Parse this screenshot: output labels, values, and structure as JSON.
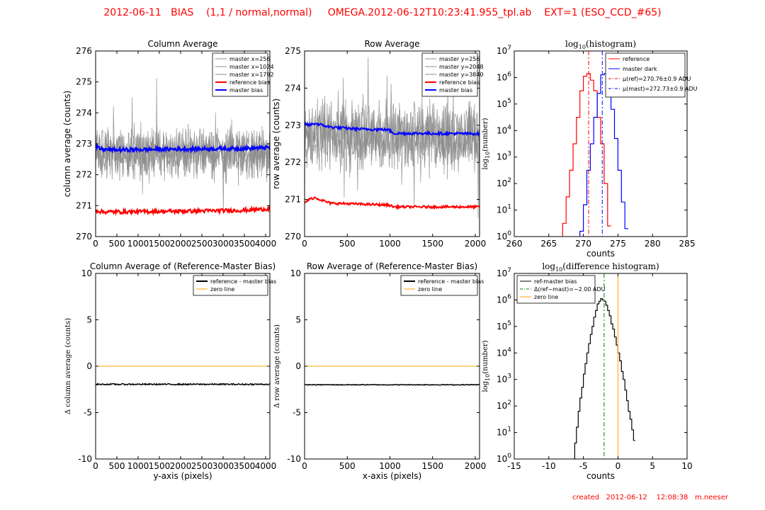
{
  "header": {
    "title": "2012-06-11   BIAS    (1,1 / normal,normal)     OMEGA.2012-06-12T10:23:41.955_tpl.ab    EXT=1 (ESO_CCD_#65)"
  },
  "footer": {
    "created": "created   2012-06-12    12:08:38   m.neeser"
  },
  "colors": {
    "header_text": "#ff0000",
    "master_lines": "#8c8c8c",
    "reference": "#ff0000",
    "master": "#0000ff",
    "difference": "#000000",
    "zero_line": "#ffa500",
    "mean_line": "#008000"
  },
  "chart_data": [
    {
      "id": "col_avg",
      "type": "line",
      "title": "Column Average",
      "xlabel": "",
      "ylabel": "column average (counts)",
      "xlim": [
        0,
        4100
      ],
      "ylim": [
        270,
        276
      ],
      "xticks": [
        0,
        500,
        1000,
        1500,
        2000,
        2500,
        3000,
        3500,
        4000
      ],
      "yticks": [
        270,
        271,
        272,
        273,
        274,
        275,
        276
      ],
      "legend": {
        "position": "top-right"
      },
      "series": [
        {
          "name": "master x=256",
          "color": "#8c8c8c",
          "kind": "noise",
          "x_range": [
            0,
            4100
          ],
          "mean": 272.7,
          "spread": 0.75,
          "count": 420,
          "width": 0.8
        },
        {
          "name": "master x=1024",
          "color": "#8c8c8c",
          "kind": "noise",
          "x_range": [
            0,
            4100
          ],
          "mean": 272.65,
          "spread": 0.7,
          "count": 420,
          "width": 0.8
        },
        {
          "name": "master x=1792",
          "color": "#8c8c8c",
          "kind": "noise",
          "x_range": [
            0,
            4100
          ],
          "mean": 272.75,
          "spread": 0.7,
          "count": 420,
          "width": 0.8
        },
        {
          "name": "reference bias",
          "color": "#ff0000",
          "kind": "band",
          "x_range": [
            0,
            4100
          ],
          "points": [
            [
              0,
              270.85
            ],
            [
              150,
              270.8
            ],
            [
              500,
              270.8
            ],
            [
              2000,
              270.82
            ],
            [
              3500,
              270.85
            ],
            [
              4100,
              270.9
            ]
          ],
          "spread": 0.06,
          "width": 2.2
        },
        {
          "name": "master bias",
          "color": "#0000ff",
          "kind": "band",
          "x_range": [
            0,
            4100
          ],
          "points": [
            [
              0,
              272.9
            ],
            [
              150,
              272.82
            ],
            [
              500,
              272.8
            ],
            [
              2000,
              272.83
            ],
            [
              3500,
              272.85
            ],
            [
              4100,
              272.88
            ]
          ],
          "spread": 0.06,
          "width": 2.2
        }
      ]
    },
    {
      "id": "row_avg",
      "type": "line",
      "title": "Row Average",
      "xlabel": "",
      "ylabel": "row average (counts)",
      "xlim": [
        0,
        2050
      ],
      "ylim": [
        270,
        275
      ],
      "xticks": [
        0,
        500,
        1000,
        1500,
        2000
      ],
      "yticks": [
        270,
        271,
        272,
        273,
        274,
        275
      ],
      "legend": {
        "position": "top-right"
      },
      "series": [
        {
          "name": "master y=256",
          "color": "#8c8c8c",
          "kind": "noise",
          "x_range": [
            0,
            2050
          ],
          "mean": 272.7,
          "spread": 0.85,
          "count": 380,
          "width": 0.8
        },
        {
          "name": "master y=2048",
          "color": "#8c8c8c",
          "kind": "noise",
          "x_range": [
            0,
            2050
          ],
          "mean": 272.8,
          "spread": 0.8,
          "count": 380,
          "width": 0.8
        },
        {
          "name": "master y=3840",
          "color": "#8c8c8c",
          "kind": "noise",
          "x_range": [
            0,
            2050
          ],
          "mean": 272.65,
          "spread": 0.8,
          "count": 380,
          "width": 0.8
        },
        {
          "name": "reference bias",
          "color": "#ff0000",
          "kind": "band",
          "x_range": [
            0,
            2050
          ],
          "points": [
            [
              0,
              270.9
            ],
            [
              50,
              271.0
            ],
            [
              120,
              271.05
            ],
            [
              300,
              270.9
            ],
            [
              600,
              270.88
            ],
            [
              980,
              270.85
            ],
            [
              1050,
              270.8
            ],
            [
              1500,
              270.8
            ],
            [
              2050,
              270.8
            ]
          ],
          "spread": 0.03,
          "width": 2.0
        },
        {
          "name": "master bias",
          "color": "#0000ff",
          "kind": "band",
          "x_range": [
            0,
            2050
          ],
          "points": [
            [
              0,
              273.05
            ],
            [
              50,
              273.0
            ],
            [
              120,
              273.05
            ],
            [
              300,
              272.95
            ],
            [
              600,
              272.9
            ],
            [
              980,
              272.88
            ],
            [
              1050,
              272.78
            ],
            [
              1500,
              272.78
            ],
            [
              2050,
              272.77
            ]
          ],
          "spread": 0.035,
          "width": 2.0
        }
      ]
    },
    {
      "id": "log_hist",
      "type": "line",
      "title": "log10(histogram)",
      "xlabel": "counts",
      "ylabel": "log10(number)",
      "xlim": [
        260,
        285
      ],
      "ylog": true,
      "ylim_exp": [
        0,
        7
      ],
      "xticks": [
        260,
        265,
        270,
        275,
        280,
        285
      ],
      "yticks_exp": [
        0,
        1,
        2,
        3,
        4,
        5,
        6,
        7
      ],
      "legend": {
        "position": "top-right"
      },
      "series": [
        {
          "name": "reference",
          "color": "#ff0000",
          "kind": "hist",
          "bin_width": 0.5,
          "bins": [
            [
              267.25,
              0.5
            ],
            [
              267.75,
              1.5
            ],
            [
              268.25,
              2.5
            ],
            [
              268.75,
              3.5
            ],
            [
              269.25,
              4.5
            ],
            [
              269.75,
              5.5
            ],
            [
              270.25,
              6.05
            ],
            [
              270.75,
              6.15
            ],
            [
              271.25,
              5.9
            ],
            [
              271.75,
              5.5
            ],
            [
              272.25,
              4.5
            ],
            [
              272.75,
              3.5
            ],
            [
              273.25,
              2.0
            ],
            [
              273.75,
              0.4
            ]
          ]
        },
        {
          "name": "master dark",
          "color": "#0000ff",
          "kind": "hist",
          "bin_width": 0.5,
          "bins": [
            [
              269.75,
              0.2
            ],
            [
              270.25,
              1.2
            ],
            [
              270.75,
              2.5
            ],
            [
              271.25,
              3.5
            ],
            [
              271.75,
              4.5
            ],
            [
              272.25,
              5.4
            ],
            [
              272.75,
              6.1
            ],
            [
              273.25,
              6.15
            ],
            [
              273.75,
              5.6
            ],
            [
              274.25,
              4.8
            ],
            [
              274.75,
              3.7
            ],
            [
              275.25,
              2.5
            ],
            [
              275.75,
              1.3
            ],
            [
              276.25,
              0.3
            ]
          ]
        },
        {
          "name": "μ(ref)=270.76±0.9 ADU",
          "color": "#ff0000",
          "kind": "vline",
          "x": 270.76,
          "dash": "6,3,2,3"
        },
        {
          "name": "μ(mast)=272.73±0.9 ADU",
          "color": "#0000ff",
          "kind": "vline",
          "x": 272.73,
          "dash": "6,3,2,3"
        }
      ]
    },
    {
      "id": "col_diff",
      "type": "line",
      "title": "Column Average of (Reference-Master Bias)",
      "xlabel": "y-axis (pixels)",
      "ylabel": "Δ column average (counts)",
      "xlim": [
        0,
        4100
      ],
      "ylim": [
        -10,
        10
      ],
      "xticks": [
        0,
        500,
        1000,
        1500,
        2000,
        2500,
        3000,
        3500,
        4000
      ],
      "yticks": [
        -10,
        -5,
        0,
        5,
        10
      ],
      "legend": {
        "position": "top-right"
      },
      "series": [
        {
          "name": "reference - master bias",
          "color": "#000000",
          "kind": "band",
          "x_range": [
            0,
            4100
          ],
          "points": [
            [
              0,
              -1.95
            ],
            [
              4100,
              -1.95
            ]
          ],
          "spread": 0.07,
          "width": 1.5
        },
        {
          "name": "zero line",
          "color": "#ffa500",
          "kind": "hline",
          "y": 0
        }
      ]
    },
    {
      "id": "row_diff",
      "type": "line",
      "title": "Row Average of (Reference-Master Bias)",
      "xlabel": "x-axis (pixels)",
      "ylabel": "Δ row average (counts)",
      "xlim": [
        0,
        2050
      ],
      "ylim": [
        -10,
        10
      ],
      "xticks": [
        0,
        500,
        1000,
        1500,
        2000
      ],
      "yticks": [
        -10,
        -5,
        0,
        5,
        10
      ],
      "legend": {
        "position": "top-right"
      },
      "series": [
        {
          "name": "reference - master bias",
          "color": "#000000",
          "kind": "band",
          "x_range": [
            0,
            2050
          ],
          "points": [
            [
              0,
              -2.0
            ],
            [
              2050,
              -2.0
            ]
          ],
          "spread": 0.04,
          "width": 1.5
        },
        {
          "name": "zero line",
          "color": "#ffa500",
          "kind": "hline",
          "y": 0
        }
      ]
    },
    {
      "id": "diff_hist",
      "type": "line",
      "title": "log10(difference histogram)",
      "xlabel": "counts",
      "ylabel": "log10(number)",
      "xlim": [
        -15,
        10
      ],
      "ylog": true,
      "ylim_exp": [
        0,
        7
      ],
      "xticks": [
        -15,
        -10,
        -5,
        0,
        5,
        10
      ],
      "yticks_exp": [
        0,
        1,
        2,
        3,
        4,
        5,
        6,
        7
      ],
      "legend": {
        "position": "top-left"
      },
      "series": [
        {
          "name": "ref-master bias",
          "color": "#000000",
          "kind": "hist",
          "bin_width": 0.25,
          "bins": [
            [
              -6.375,
              0.0
            ],
            [
              -6.125,
              0.6
            ],
            [
              -5.875,
              1.2
            ],
            [
              -5.625,
              1.8
            ],
            [
              -5.375,
              2.3
            ],
            [
              -5.125,
              2.7
            ],
            [
              -4.875,
              3.2
            ],
            [
              -4.625,
              3.6
            ],
            [
              -4.375,
              4.0
            ],
            [
              -4.125,
              4.35
            ],
            [
              -3.875,
              4.7
            ],
            [
              -3.625,
              5.0
            ],
            [
              -3.375,
              5.35
            ],
            [
              -3.125,
              5.6
            ],
            [
              -2.875,
              5.85
            ],
            [
              -2.625,
              5.95
            ],
            [
              -2.375,
              6.05
            ],
            [
              -2.125,
              6.0
            ],
            [
              -1.875,
              5.95
            ],
            [
              -1.625,
              5.8
            ],
            [
              -1.375,
              5.6
            ],
            [
              -1.125,
              5.4
            ],
            [
              -0.875,
              5.1
            ],
            [
              -0.625,
              4.9
            ],
            [
              -0.375,
              4.6
            ],
            [
              -0.125,
              4.3
            ],
            [
              0.125,
              4.0
            ],
            [
              0.375,
              3.7
            ],
            [
              0.625,
              3.3
            ],
            [
              0.875,
              3.0
            ],
            [
              1.125,
              2.6
            ],
            [
              1.375,
              2.2
            ],
            [
              1.625,
              1.8
            ],
            [
              1.875,
              1.5
            ],
            [
              2.125,
              1.1
            ],
            [
              2.375,
              0.7
            ]
          ]
        },
        {
          "name": "Δ(ref−mast)=−2.00 ADU",
          "color": "#008000",
          "kind": "vline",
          "x": -2.0,
          "dash": "6,3,2,3"
        },
        {
          "name": "zero line",
          "color": "#ffa500",
          "kind": "vline",
          "x": 0
        }
      ]
    }
  ]
}
